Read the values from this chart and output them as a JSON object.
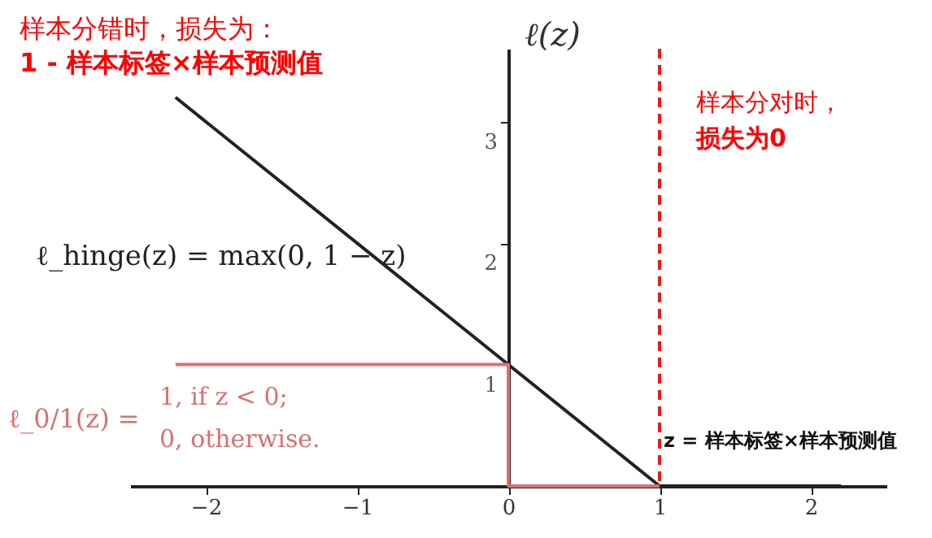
{
  "chart_data": {
    "type": "line",
    "ylabel": "ℓ(z)",
    "xlim": [
      -2.5,
      2.5
    ],
    "ylim": [
      0,
      3.6
    ],
    "xticks": [
      -2,
      -1,
      0,
      1,
      2
    ],
    "yticks": [
      1,
      2,
      3
    ],
    "grid": false,
    "marker": "none",
    "line_style": "solid",
    "series": [
      {
        "color": "#222222",
        "x": [
          -2.2,
          1,
          2.2
        ],
        "values": [
          3.2,
          0,
          0
        ]
      },
      {
        "color": "#d9706f",
        "x": [
          -2.2,
          0,
          0,
          1
        ],
        "values": [
          1,
          1,
          0,
          0
        ]
      }
    ],
    "ref_lines": [
      {
        "axis": "x",
        "value": 1,
        "color": "#e8191a",
        "line_style": "dashed"
      }
    ],
    "annotations": [
      "样本分错时，损失为：",
      "1 - 样本标签×样本预测值",
      "样本分对时，",
      "损失为0",
      "ℓ_hinge(z) = max(0, 1 − z)",
      "ℓ_0/1(z) =",
      "1,   if z < 0;",
      "0,   otherwise.",
      "z = 样本标签×样本预测值"
    ]
  }
}
